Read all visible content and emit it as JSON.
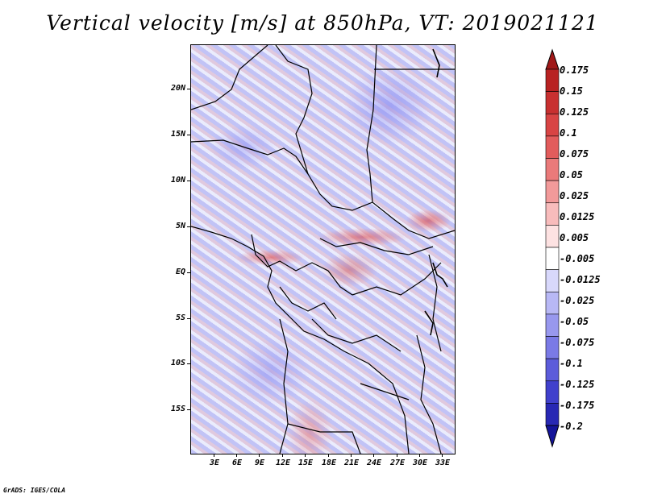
{
  "title": "Vertical velocity [m/s] at 850hPa, VT: 2019021121",
  "footer": "GrADS: IGES/COLA",
  "map": {
    "lat_labels": [
      "20N",
      "15N",
      "10N",
      "5N",
      "EQ",
      "5S",
      "10S",
      "15S"
    ],
    "lon_labels": [
      "3E",
      "6E",
      "9E",
      "12E",
      "15E",
      "18E",
      "21E",
      "24E",
      "27E",
      "30E",
      "33E"
    ],
    "lat_range": [
      -19.5,
      25
    ],
    "lon_range": [
      0,
      34.5
    ]
  },
  "colorbar": {
    "labels": [
      "0.175",
      "0.15",
      "0.125",
      "0.1",
      "0.075",
      "0.05",
      "0.025",
      "0.0125",
      "0.005",
      "-0.005",
      "-0.0125",
      "-0.025",
      "-0.05",
      "-0.075",
      "-0.1",
      "-0.125",
      "-0.175",
      "-0.2"
    ],
    "colors": [
      "#a01818",
      "#b82222",
      "#c83030",
      "#d84444",
      "#e25c5c",
      "#ea7a7a",
      "#f29a9a",
      "#f8bcbc",
      "#fde2e2",
      "#ffffff",
      "#d8d8fb",
      "#b8b8f5",
      "#9898ee",
      "#7a7ae6",
      "#5c5cda",
      "#4040cc",
      "#2828b4",
      "#14149a"
    ],
    "top_color": "#a01818",
    "bottom_color": "#14149a"
  }
}
